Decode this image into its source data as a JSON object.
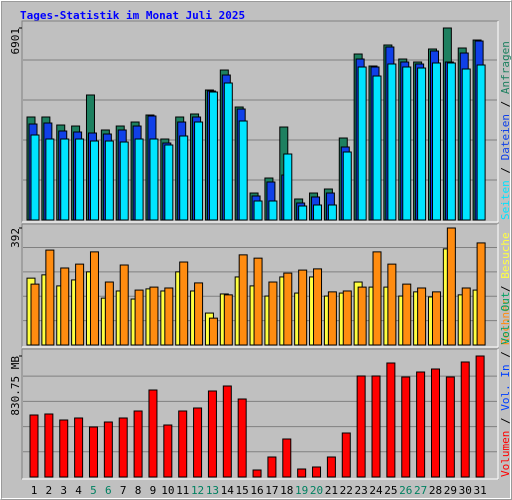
{
  "chart_data": [
    {
      "type": "bar",
      "title": "Tages-Statistik im Monat Juli 2025",
      "ylim": [
        0,
        6901
      ],
      "yticks": [
        6901
      ],
      "legend_reversed": true,
      "legend_separator": " / ",
      "series": [
        {
          "name": "Anfragen",
          "color": "#1e8060",
          "values": [
            3702,
            3702,
            3414,
            3378,
            4493,
            3235,
            3378,
            3522,
            3774,
            2911,
            3702,
            3810,
            4672,
            5391,
            4061,
            970,
            1509,
            3342,
            755,
            970,
            1114,
            2947,
            5966,
            5535,
            6290,
            5786,
            5679,
            6146,
            6901,
            6182,
            6469
          ]
        },
        {
          "name": "Dateien",
          "color": "#1040e8",
          "values": [
            3450,
            3486,
            3199,
            3163,
            3127,
            3091,
            3235,
            3378,
            3738,
            2767,
            3522,
            3702,
            4636,
            5211,
            3989,
            863,
            1366,
            1617,
            611,
            827,
            970,
            2624,
            5786,
            5499,
            6218,
            5679,
            5607,
            6074,
            5679,
            6002,
            6433
          ]
        },
        {
          "name": "Seiten",
          "color": "#00e4ff",
          "values": [
            3055,
            2911,
            2911,
            2911,
            2839,
            2839,
            2803,
            2911,
            2911,
            2696,
            3019,
            3522,
            4600,
            4924,
            3558,
            683,
            683,
            2372,
            503,
            539,
            539,
            2444,
            5499,
            5175,
            5607,
            5499,
            5463,
            5643,
            5643,
            5427,
            5571
          ]
        }
      ]
    },
    {
      "type": "bar",
      "ylim": [
        0,
        392
      ],
      "yticks": [
        392
      ],
      "legend_reversed": true,
      "legend_separator": " / ",
      "series": [
        {
          "name": "Besuche",
          "color": "#ffff40",
          "values": [
            224,
            235,
            198,
            218,
            245,
            157,
            181,
            154,
            188,
            181,
            245,
            181,
            107,
            171,
            228,
            198,
            164,
            228,
            174,
            228,
            164,
            174,
            211,
            194,
            194,
            164,
            178,
            161,
            322,
            168,
            184
          ]
        },
        {
          "name": "Rechner",
          "color": "#ff8c10",
          "values": [
            204,
            318,
            258,
            271,
            312,
            211,
            268,
            184,
            194,
            191,
            278,
            208,
            90,
            168,
            302,
            291,
            211,
            241,
            251,
            255,
            178,
            181,
            194,
            312,
            271,
            204,
            191,
            178,
            392,
            191,
            342
          ]
        }
      ]
    },
    {
      "type": "bar",
      "ylim": [
        0,
        830.75
      ],
      "yticks": [
        {
          "value": 830.75,
          "label": "830.75 MB"
        }
      ],
      "legend_reversed": false,
      "legend_separator": " / ",
      "categories": [
        "1",
        "2",
        "3",
        "4",
        "5",
        "6",
        "7",
        "8",
        "9",
        "10",
        "11",
        "12",
        "13",
        "14",
        "15",
        "16",
        "17",
        "18",
        "19",
        "20",
        "21",
        "22",
        "23",
        "24",
        "25",
        "26",
        "27",
        "28",
        "29",
        "30",
        "31"
      ],
      "category_colors": [
        "#000000",
        "#000000",
        "#000000",
        "#000000",
        "#008060",
        "#008060",
        "#000000",
        "#000000",
        "#000000",
        "#000000",
        "#000000",
        "#008060",
        "#008060",
        "#000000",
        "#000000",
        "#000000",
        "#000000",
        "#000000",
        "#008060",
        "#008060",
        "#000000",
        "#000000",
        "#000000",
        "#000000",
        "#000000",
        "#008060",
        "#008060",
        "#000000",
        "#000000",
        "#000000",
        "#000000"
      ],
      "series": [
        {
          "name": "Volumen",
          "color": "#ff0000",
          "values": [
            425.7,
            432.6,
            391.4,
            405.1,
            343.3,
            377.6,
            405.1,
            453.2,
            597.3,
            357.0,
            453.2,
            473.8,
            590.5,
            624.8,
            535.5,
            48.1,
            137.3,
            260.9,
            54.9,
            68.7,
            137.3,
            302.1,
            693.5,
            693.5,
            782.7,
            686.6,
            720.9,
            741.5,
            686.6,
            789.6,
            830.75
          ]
        }
      ],
      "legend_only": [
        {
          "name": "Vol. In",
          "color": "#0040ff"
        },
        {
          "name": "Vol. Out",
          "color": "#00a060"
        }
      ]
    }
  ]
}
